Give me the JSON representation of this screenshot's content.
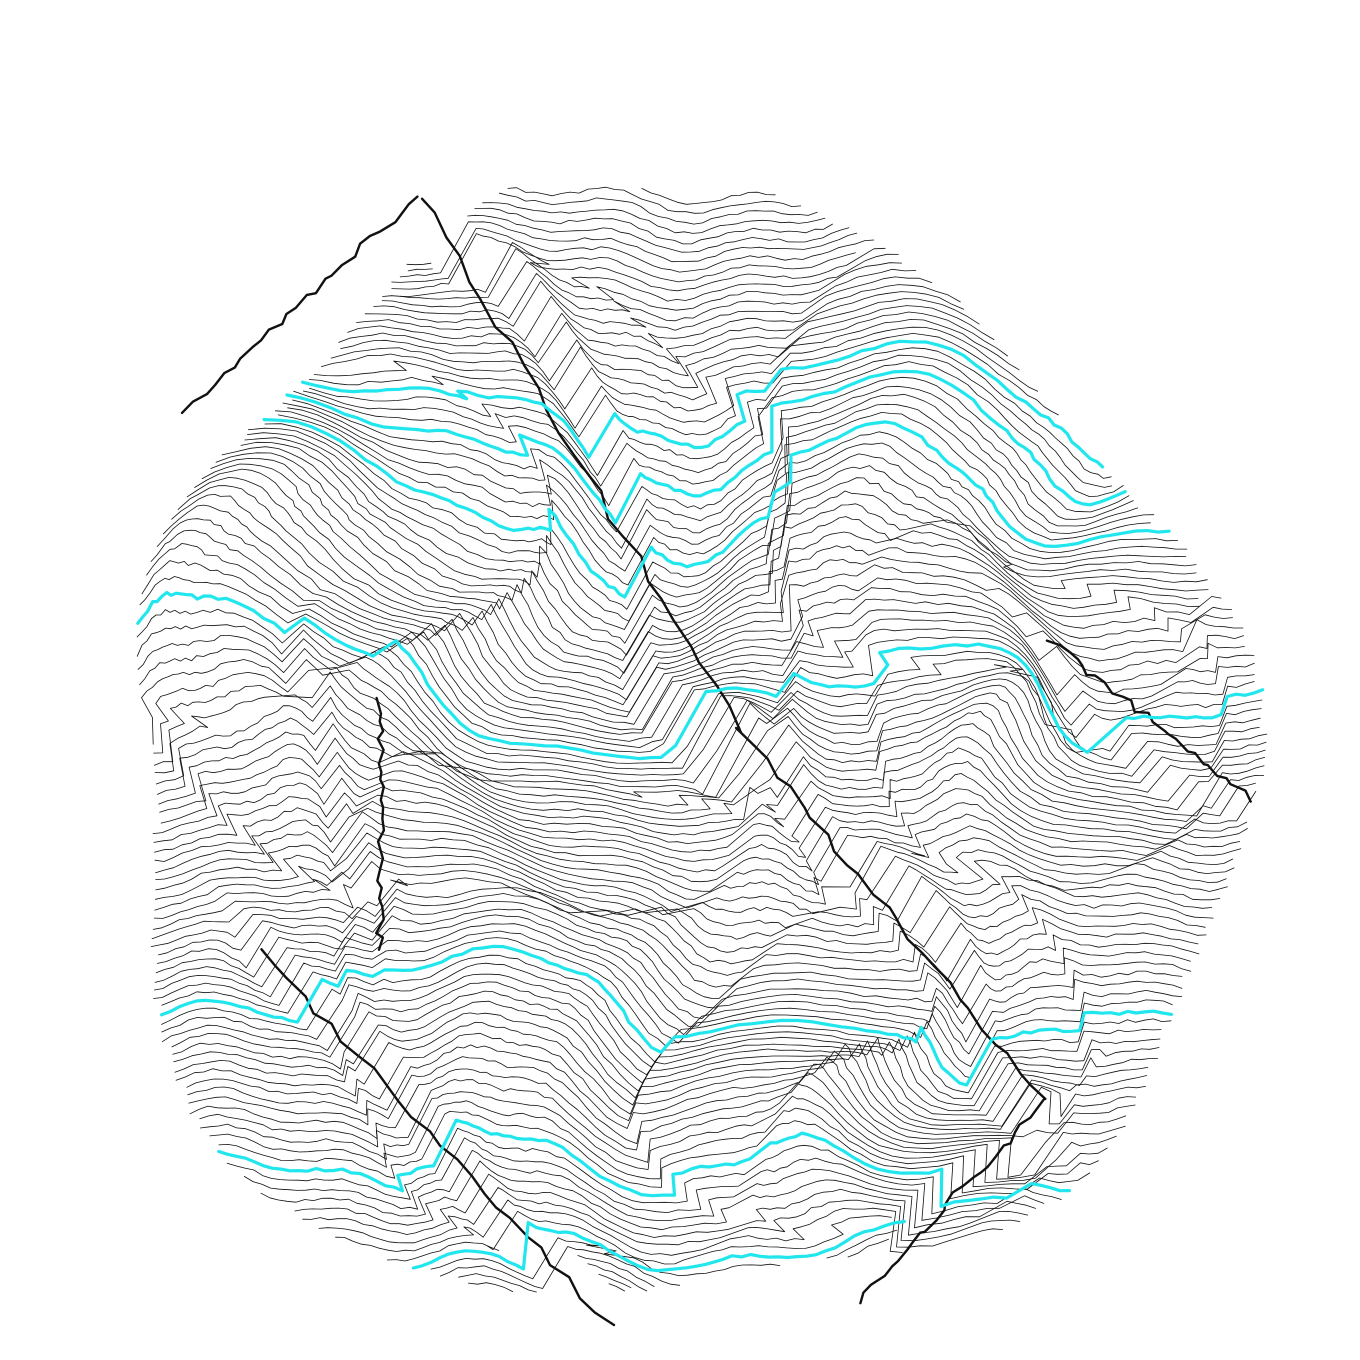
{
  "artwork": {
    "type": "generative contour line drawing",
    "background_color": "#ffffff",
    "line_color": "#111111",
    "accent_color": "#22e6ee",
    "contour_line_count": 120,
    "accent_line_count": 7,
    "seed": 7
  }
}
